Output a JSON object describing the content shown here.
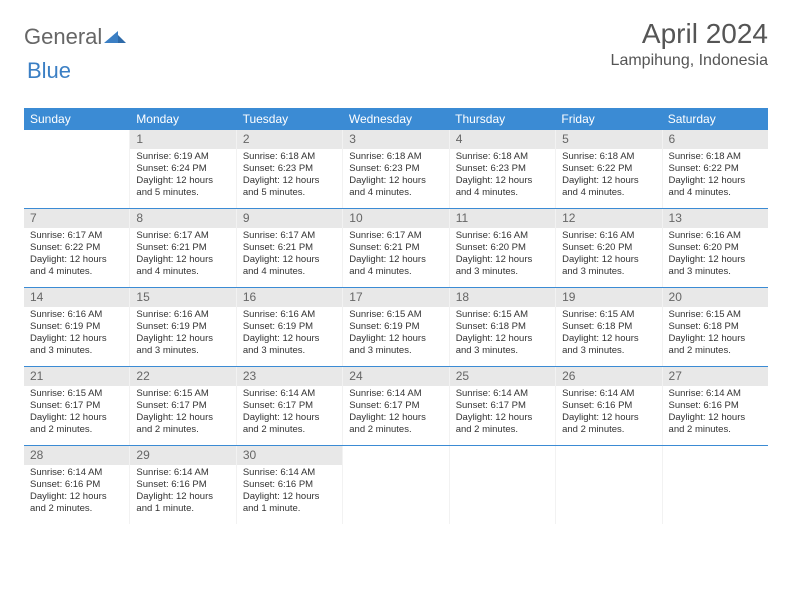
{
  "header": {
    "logo_general": "General",
    "logo_blue": "Blue",
    "month_title": "April 2024",
    "location": "Lampihung, Indonesia"
  },
  "colors": {
    "header_bg": "#3b8bd4",
    "header_text": "#ffffff",
    "date_bar_bg": "#e8e8e8",
    "date_bar_text": "#666666",
    "body_text": "#333333",
    "rule": "#3b8bd4",
    "logo_gray": "#666666",
    "logo_blue": "#3b7fc4"
  },
  "day_names": [
    "Sunday",
    "Monday",
    "Tuesday",
    "Wednesday",
    "Thursday",
    "Friday",
    "Saturday"
  ],
  "weeks": [
    [
      {
        "date": "",
        "sunrise": "",
        "sunset": "",
        "daylight": ""
      },
      {
        "date": "1",
        "sunrise": "Sunrise: 6:19 AM",
        "sunset": "Sunset: 6:24 PM",
        "daylight": "Daylight: 12 hours and 5 minutes."
      },
      {
        "date": "2",
        "sunrise": "Sunrise: 6:18 AM",
        "sunset": "Sunset: 6:23 PM",
        "daylight": "Daylight: 12 hours and 5 minutes."
      },
      {
        "date": "3",
        "sunrise": "Sunrise: 6:18 AM",
        "sunset": "Sunset: 6:23 PM",
        "daylight": "Daylight: 12 hours and 4 minutes."
      },
      {
        "date": "4",
        "sunrise": "Sunrise: 6:18 AM",
        "sunset": "Sunset: 6:23 PM",
        "daylight": "Daylight: 12 hours and 4 minutes."
      },
      {
        "date": "5",
        "sunrise": "Sunrise: 6:18 AM",
        "sunset": "Sunset: 6:22 PM",
        "daylight": "Daylight: 12 hours and 4 minutes."
      },
      {
        "date": "6",
        "sunrise": "Sunrise: 6:18 AM",
        "sunset": "Sunset: 6:22 PM",
        "daylight": "Daylight: 12 hours and 4 minutes."
      }
    ],
    [
      {
        "date": "7",
        "sunrise": "Sunrise: 6:17 AM",
        "sunset": "Sunset: 6:22 PM",
        "daylight": "Daylight: 12 hours and 4 minutes."
      },
      {
        "date": "8",
        "sunrise": "Sunrise: 6:17 AM",
        "sunset": "Sunset: 6:21 PM",
        "daylight": "Daylight: 12 hours and 4 minutes."
      },
      {
        "date": "9",
        "sunrise": "Sunrise: 6:17 AM",
        "sunset": "Sunset: 6:21 PM",
        "daylight": "Daylight: 12 hours and 4 minutes."
      },
      {
        "date": "10",
        "sunrise": "Sunrise: 6:17 AM",
        "sunset": "Sunset: 6:21 PM",
        "daylight": "Daylight: 12 hours and 4 minutes."
      },
      {
        "date": "11",
        "sunrise": "Sunrise: 6:16 AM",
        "sunset": "Sunset: 6:20 PM",
        "daylight": "Daylight: 12 hours and 3 minutes."
      },
      {
        "date": "12",
        "sunrise": "Sunrise: 6:16 AM",
        "sunset": "Sunset: 6:20 PM",
        "daylight": "Daylight: 12 hours and 3 minutes."
      },
      {
        "date": "13",
        "sunrise": "Sunrise: 6:16 AM",
        "sunset": "Sunset: 6:20 PM",
        "daylight": "Daylight: 12 hours and 3 minutes."
      }
    ],
    [
      {
        "date": "14",
        "sunrise": "Sunrise: 6:16 AM",
        "sunset": "Sunset: 6:19 PM",
        "daylight": "Daylight: 12 hours and 3 minutes."
      },
      {
        "date": "15",
        "sunrise": "Sunrise: 6:16 AM",
        "sunset": "Sunset: 6:19 PM",
        "daylight": "Daylight: 12 hours and 3 minutes."
      },
      {
        "date": "16",
        "sunrise": "Sunrise: 6:16 AM",
        "sunset": "Sunset: 6:19 PM",
        "daylight": "Daylight: 12 hours and 3 minutes."
      },
      {
        "date": "17",
        "sunrise": "Sunrise: 6:15 AM",
        "sunset": "Sunset: 6:19 PM",
        "daylight": "Daylight: 12 hours and 3 minutes."
      },
      {
        "date": "18",
        "sunrise": "Sunrise: 6:15 AM",
        "sunset": "Sunset: 6:18 PM",
        "daylight": "Daylight: 12 hours and 3 minutes."
      },
      {
        "date": "19",
        "sunrise": "Sunrise: 6:15 AM",
        "sunset": "Sunset: 6:18 PM",
        "daylight": "Daylight: 12 hours and 3 minutes."
      },
      {
        "date": "20",
        "sunrise": "Sunrise: 6:15 AM",
        "sunset": "Sunset: 6:18 PM",
        "daylight": "Daylight: 12 hours and 2 minutes."
      }
    ],
    [
      {
        "date": "21",
        "sunrise": "Sunrise: 6:15 AM",
        "sunset": "Sunset: 6:17 PM",
        "daylight": "Daylight: 12 hours and 2 minutes."
      },
      {
        "date": "22",
        "sunrise": "Sunrise: 6:15 AM",
        "sunset": "Sunset: 6:17 PM",
        "daylight": "Daylight: 12 hours and 2 minutes."
      },
      {
        "date": "23",
        "sunrise": "Sunrise: 6:14 AM",
        "sunset": "Sunset: 6:17 PM",
        "daylight": "Daylight: 12 hours and 2 minutes."
      },
      {
        "date": "24",
        "sunrise": "Sunrise: 6:14 AM",
        "sunset": "Sunset: 6:17 PM",
        "daylight": "Daylight: 12 hours and 2 minutes."
      },
      {
        "date": "25",
        "sunrise": "Sunrise: 6:14 AM",
        "sunset": "Sunset: 6:17 PM",
        "daylight": "Daylight: 12 hours and 2 minutes."
      },
      {
        "date": "26",
        "sunrise": "Sunrise: 6:14 AM",
        "sunset": "Sunset: 6:16 PM",
        "daylight": "Daylight: 12 hours and 2 minutes."
      },
      {
        "date": "27",
        "sunrise": "Sunrise: 6:14 AM",
        "sunset": "Sunset: 6:16 PM",
        "daylight": "Daylight: 12 hours and 2 minutes."
      }
    ],
    [
      {
        "date": "28",
        "sunrise": "Sunrise: 6:14 AM",
        "sunset": "Sunset: 6:16 PM",
        "daylight": "Daylight: 12 hours and 2 minutes."
      },
      {
        "date": "29",
        "sunrise": "Sunrise: 6:14 AM",
        "sunset": "Sunset: 6:16 PM",
        "daylight": "Daylight: 12 hours and 1 minute."
      },
      {
        "date": "30",
        "sunrise": "Sunrise: 6:14 AM",
        "sunset": "Sunset: 6:16 PM",
        "daylight": "Daylight: 12 hours and 1 minute."
      },
      {
        "date": "",
        "sunrise": "",
        "sunset": "",
        "daylight": ""
      },
      {
        "date": "",
        "sunrise": "",
        "sunset": "",
        "daylight": ""
      },
      {
        "date": "",
        "sunrise": "",
        "sunset": "",
        "daylight": ""
      },
      {
        "date": "",
        "sunrise": "",
        "sunset": "",
        "daylight": ""
      }
    ]
  ]
}
